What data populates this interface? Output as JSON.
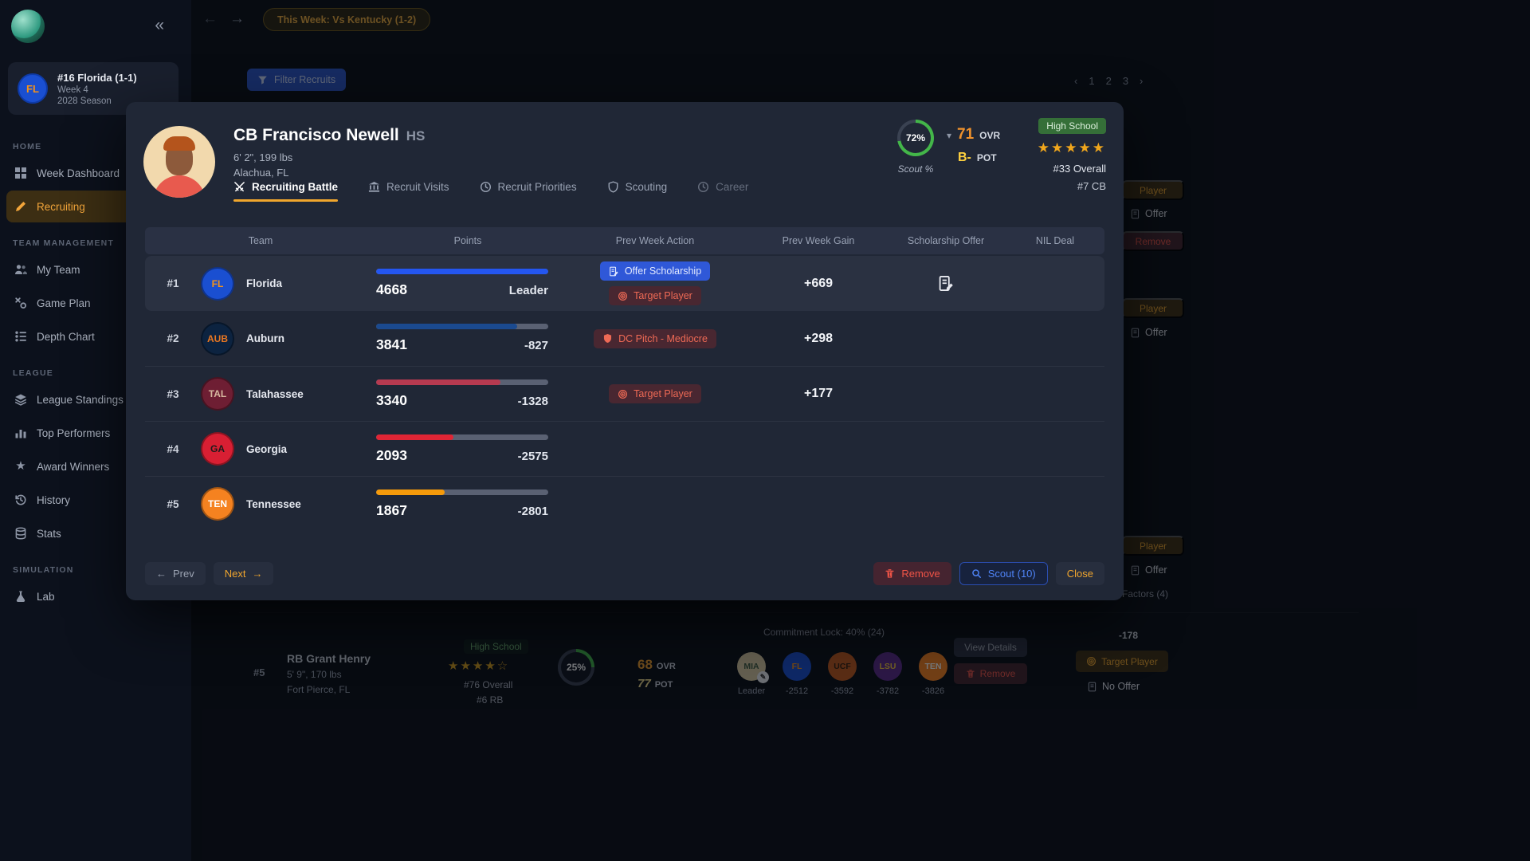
{
  "topbar": {
    "matchup": "This Week: Vs Kentucky (1-2)",
    "pagination": [
      "1",
      "2",
      "3"
    ]
  },
  "sidebar": {
    "team": {
      "abbr": "FL",
      "name": "#16 Florida (1-1)",
      "week": "Week 4",
      "season": "2028 Season"
    },
    "sections": [
      {
        "title": "HOME",
        "items": [
          {
            "label": "Week Dashboard"
          },
          {
            "label": "Recruiting"
          }
        ]
      },
      {
        "title": "TEAM MANAGEMENT",
        "items": [
          {
            "label": "My Team"
          },
          {
            "label": "Game Plan"
          },
          {
            "label": "Depth Chart"
          }
        ]
      },
      {
        "title": "LEAGUE",
        "items": [
          {
            "label": "League Standings"
          },
          {
            "label": "Top Performers"
          },
          {
            "label": "Award Winners"
          },
          {
            "label": "History"
          },
          {
            "label": "Stats"
          }
        ]
      },
      {
        "title": "SIMULATION",
        "items": [
          {
            "label": "Lab"
          }
        ]
      }
    ]
  },
  "main": {
    "filter_button": "Filter Recruits",
    "fragments": {
      "player": "Player",
      "offer": "Offer",
      "remove": "Remove",
      "factors": "Factors (4)"
    }
  },
  "bottom_row": {
    "rank": "#5",
    "name": "RB Grant Henry",
    "size": "5' 9\", 170 lbs",
    "location": "Fort Pierce, FL",
    "school_badge": "High School",
    "stars": "★★★★☆",
    "overall_rank": "#76 Overall",
    "position_rank": "#6 RB",
    "scout_pct": "25%",
    "scout_num": 25,
    "ovr": "68",
    "ovr_label": "OVR",
    "pot": "77",
    "pot_label": "POT",
    "commit_lock": "Commitment Lock: 40% (24)",
    "week_delta": "-178",
    "teams": [
      {
        "abbr": "MIA",
        "bg": "#d8c8a0",
        "fg": "#3c5a40",
        "status": "Leader"
      },
      {
        "abbr": "FL",
        "bg": "#1a4fd1",
        "fg": "#f59319",
        "status": "-2512"
      },
      {
        "abbr": "UCF",
        "bg": "#c25a1e",
        "fg": "#35200e",
        "status": "-3592"
      },
      {
        "abbr": "LSU",
        "bg": "#5b2b8a",
        "fg": "#f3c53d",
        "status": "-3782"
      },
      {
        "abbr": "TEN",
        "bg": "#f58220",
        "fg": "#ffffff",
        "status": "-3826"
      }
    ],
    "buttons": {
      "view_details": "View Details",
      "remove": "Remove",
      "target_player": "Target Player",
      "no_offer": "No Offer"
    }
  },
  "modal": {
    "player": {
      "name": "CB Francisco Newell",
      "tag": "HS",
      "size": "6' 2\", 199 lbs",
      "location": "Alachua, FL",
      "scout_pct": "72%",
      "scout_num": 72,
      "scout_label": "Scout %",
      "ovr": "71",
      "ovr_label": "OVR",
      "pot": "B-",
      "pot_label": "POT",
      "badge": "High School",
      "stars": "★★★★★",
      "overall_rank": "#33 Overall",
      "position_rank": "#7 CB"
    },
    "tabs": [
      {
        "label": "Recruiting Battle"
      },
      {
        "label": "Recruit Visits"
      },
      {
        "label": "Recruit Priorities"
      },
      {
        "label": "Scouting"
      },
      {
        "label": "Career"
      }
    ],
    "table": {
      "headers": [
        "Team",
        "Points",
        "Prev Week Action",
        "Prev Week Gain",
        "Scholarship Offer",
        "NIL Deal"
      ],
      "rows": [
        {
          "rank": "#1",
          "abbr": "FL",
          "team": "Florida",
          "bg": "#1a4fd1",
          "fg": "#f59319",
          "points": "4668",
          "delta": "Leader",
          "pct": 100,
          "bar": "#2456f0",
          "gain": "+669",
          "actions": [
            {
              "label": "Offer Scholarship"
            },
            {
              "label": "Target Player"
            }
          ]
        },
        {
          "rank": "#2",
          "abbr": "AUB",
          "team": "Auburn",
          "bg": "#0c2340",
          "fg": "#e87722",
          "points": "3841",
          "delta": "-827",
          "pct": 82,
          "bar": "#1b4a8f",
          "gain": "+298",
          "actions": [
            {
              "label": "DC Pitch - Mediocre"
            }
          ]
        },
        {
          "rank": "#3",
          "abbr": "TAL",
          "team": "Talahassee",
          "bg": "#6e1e33",
          "fg": "#d8b9a0",
          "points": "3340",
          "delta": "-1328",
          "pct": 72,
          "bar": "#b63a50",
          "gain": "+177",
          "actions": [
            {
              "label": "Target Player"
            }
          ]
        },
        {
          "rank": "#4",
          "abbr": "GA",
          "team": "Georgia",
          "bg": "#d81f33",
          "fg": "#1b1b1b",
          "points": "2093",
          "delta": "-2575",
          "pct": 45,
          "bar": "#e02535",
          "gain": ""
        },
        {
          "rank": "#5",
          "abbr": "TEN",
          "team": "Tennessee",
          "bg": "#f58220",
          "fg": "#ffffff",
          "points": "1867",
          "delta": "-2801",
          "pct": 40,
          "bar": "#f59a0b",
          "gain": ""
        }
      ]
    },
    "footer": {
      "prev": "Prev",
      "next": "Next",
      "remove": "Remove",
      "scout": "Scout (10)",
      "close": "Close"
    }
  }
}
